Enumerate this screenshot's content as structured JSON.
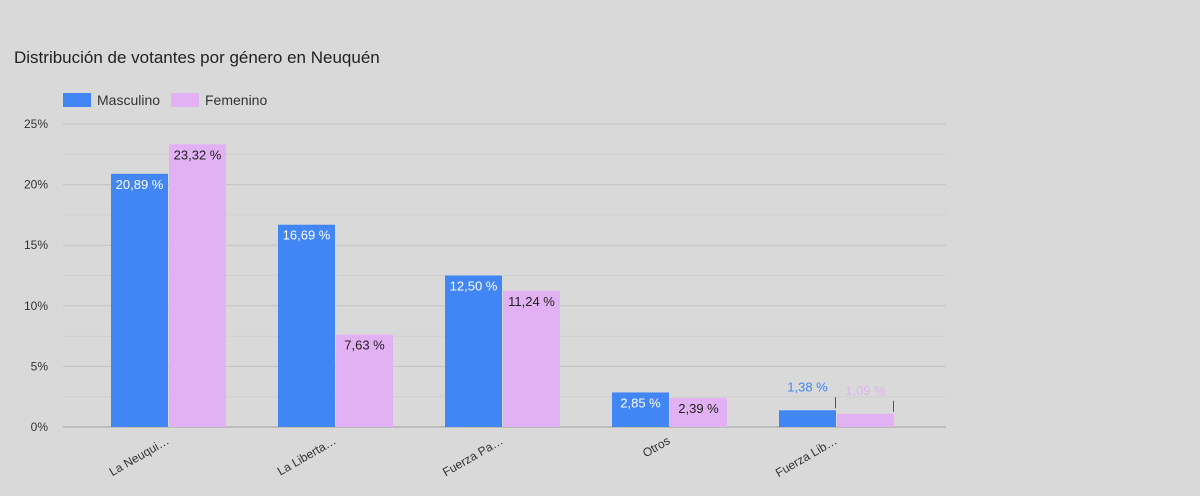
{
  "chart_data": {
    "type": "bar",
    "title": "Distribución de votantes por género en Neuquén",
    "xlabel": "",
    "ylabel": "",
    "categories": [
      "La Neuqui…",
      "La Liberta…",
      "Fuerza Pa…",
      "Otros",
      "Fuerza Lib…"
    ],
    "series": [
      {
        "name": "Masculino",
        "color": "#4285f4",
        "values": [
          20.89,
          16.69,
          12.5,
          2.85,
          1.38
        ],
        "labels": [
          "20,89 %",
          "16,69 %",
          "12,50 %",
          "2,85 %",
          "1,38 %"
        ]
      },
      {
        "name": "Femenino",
        "color": "#e2b1f3",
        "values": [
          23.32,
          7.63,
          11.24,
          2.39,
          1.09
        ],
        "labels": [
          "23,32 %",
          "7,63 %",
          "11,24 %",
          "2,39 %",
          "1,09 %"
        ]
      }
    ],
    "ylim": [
      0,
      25
    ],
    "yticks": [
      0,
      5,
      10,
      15,
      20,
      25
    ],
    "ytick_labels": [
      "0%",
      "5%",
      "10%",
      "15%",
      "20%",
      "25%"
    ],
    "grid": true,
    "legend_position": "top-left"
  }
}
